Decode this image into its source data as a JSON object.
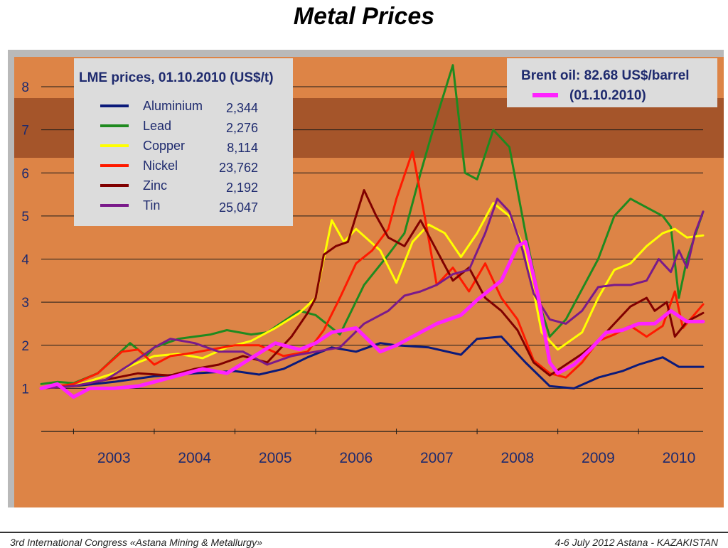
{
  "slide": {
    "title": "Metal Prices"
  },
  "footer": {
    "left": "3rd International Congress «Astana Mining & Metallurgy»",
    "right": "4-6 July 2012     Astana - KAZAKISTAN"
  },
  "colors": {
    "background": "#dd8446",
    "band": "#a5552a",
    "grid": "#1a1a1a",
    "legend_box": "#dcdcdc",
    "axis_text": "#1e2a6e"
  },
  "legend_metals": {
    "title": "LME prices, 01.10.2010 (US$/t)",
    "items": [
      {
        "name": "Aluminium",
        "value": "2,344",
        "color": "#0b1a7a"
      },
      {
        "name": "Lead",
        "value": "2,276",
        "color": "#1f8a1f"
      },
      {
        "name": "Copper",
        "value": "8,114",
        "color": "#ffff00"
      },
      {
        "name": "Nickel",
        "value": "23,762",
        "color": "#ff1a00"
      },
      {
        "name": "Zinc",
        "value": "2,192",
        "color": "#800000"
      },
      {
        "name": "Tin",
        "value": "25,047",
        "color": "#7a1a8a"
      }
    ]
  },
  "legend_oil": {
    "line1": "Brent oil: 82.68 US$/barrel",
    "line2": "(01.10.2010)",
    "color": "#ff22ff"
  },
  "chart_data": {
    "type": "line",
    "title": "Metal Prices",
    "x_tick_labels": [
      "2003",
      "2004",
      "2005",
      "2006",
      "2007",
      "2008",
      "2009",
      "2010"
    ],
    "y_tick_labels": [
      "1",
      "2",
      "3",
      "4",
      "5",
      "6",
      "7",
      "8"
    ],
    "xlim": [
      2002.6,
      2010.8
    ],
    "ylim": [
      0,
      8
    ],
    "grid": true,
    "series": [
      {
        "name": "Aluminium",
        "color": "#0b1a7a",
        "points": [
          [
            2002.6,
            1
          ],
          [
            2003.0,
            1.05
          ],
          [
            2003.5,
            1.15
          ],
          [
            2004.0,
            1.28
          ],
          [
            2004.5,
            1.35
          ],
          [
            2005.0,
            1.4
          ],
          [
            2005.3,
            1.32
          ],
          [
            2005.6,
            1.45
          ],
          [
            2005.9,
            1.72
          ],
          [
            2006.2,
            1.95
          ],
          [
            2006.5,
            1.85
          ],
          [
            2006.8,
            2.05
          ],
          [
            2007.0,
            2.0
          ],
          [
            2007.4,
            1.95
          ],
          [
            2007.8,
            1.78
          ],
          [
            2008.0,
            2.15
          ],
          [
            2008.3,
            2.2
          ],
          [
            2008.6,
            1.6
          ],
          [
            2008.9,
            1.05
          ],
          [
            2009.2,
            1.0
          ],
          [
            2009.5,
            1.25
          ],
          [
            2009.8,
            1.4
          ],
          [
            2010.0,
            1.55
          ],
          [
            2010.3,
            1.72
          ],
          [
            2010.5,
            1.5
          ],
          [
            2010.8,
            1.5
          ]
        ]
      },
      {
        "name": "Lead",
        "color": "#1f8a1f",
        "points": [
          [
            2002.6,
            1.1
          ],
          [
            2002.8,
            1.15
          ],
          [
            2003.0,
            1.12
          ],
          [
            2003.3,
            1.35
          ],
          [
            2003.5,
            1.7
          ],
          [
            2003.7,
            2.05
          ],
          [
            2003.9,
            1.75
          ],
          [
            2004.0,
            1.95
          ],
          [
            2004.3,
            2.15
          ],
          [
            2004.5,
            2.2
          ],
          [
            2004.7,
            2.25
          ],
          [
            2004.9,
            2.35
          ],
          [
            2005.2,
            2.25
          ],
          [
            2005.4,
            2.3
          ],
          [
            2005.6,
            2.55
          ],
          [
            2005.8,
            2.8
          ],
          [
            2006.0,
            2.7
          ],
          [
            2006.3,
            2.25
          ],
          [
            2006.6,
            3.4
          ],
          [
            2006.9,
            4.1
          ],
          [
            2007.1,
            4.6
          ],
          [
            2007.3,
            6.0
          ],
          [
            2007.5,
            7.3
          ],
          [
            2007.7,
            8.5
          ],
          [
            2007.85,
            6.0
          ],
          [
            2008.0,
            5.85
          ],
          [
            2008.2,
            7.0
          ],
          [
            2008.4,
            6.6
          ],
          [
            2008.6,
            4.6
          ],
          [
            2008.8,
            2.8
          ],
          [
            2008.9,
            2.2
          ],
          [
            2009.1,
            2.6
          ],
          [
            2009.3,
            3.3
          ],
          [
            2009.5,
            4.0
          ],
          [
            2009.7,
            5.0
          ],
          [
            2009.9,
            5.4
          ],
          [
            2010.1,
            5.2
          ],
          [
            2010.3,
            5.0
          ],
          [
            2010.4,
            4.75
          ],
          [
            2010.5,
            3.1
          ],
          [
            2010.6,
            4.0
          ],
          [
            2010.8,
            5.1
          ]
        ]
      },
      {
        "name": "Copper",
        "color": "#ffff00",
        "points": [
          [
            2002.6,
            1.0
          ],
          [
            2003.0,
            1.05
          ],
          [
            2003.5,
            1.35
          ],
          [
            2003.8,
            1.6
          ],
          [
            2004.0,
            1.75
          ],
          [
            2004.3,
            1.8
          ],
          [
            2004.6,
            1.7
          ],
          [
            2004.9,
            1.95
          ],
          [
            2005.2,
            2.1
          ],
          [
            2005.5,
            2.4
          ],
          [
            2005.8,
            2.75
          ],
          [
            2006.0,
            3.1
          ],
          [
            2006.2,
            4.9
          ],
          [
            2006.35,
            4.4
          ],
          [
            2006.5,
            4.7
          ],
          [
            2006.8,
            4.2
          ],
          [
            2007.0,
            3.45
          ],
          [
            2007.2,
            4.4
          ],
          [
            2007.4,
            4.8
          ],
          [
            2007.6,
            4.6
          ],
          [
            2007.8,
            4.05
          ],
          [
            2008.0,
            4.6
          ],
          [
            2008.2,
            5.3
          ],
          [
            2008.4,
            5.0
          ],
          [
            2008.6,
            4.2
          ],
          [
            2008.8,
            2.3
          ],
          [
            2009.0,
            1.9
          ],
          [
            2009.3,
            2.3
          ],
          [
            2009.5,
            3.1
          ],
          [
            2009.7,
            3.75
          ],
          [
            2009.9,
            3.9
          ],
          [
            2010.1,
            4.3
          ],
          [
            2010.3,
            4.6
          ],
          [
            2010.45,
            4.7
          ],
          [
            2010.6,
            4.5
          ],
          [
            2010.8,
            4.55
          ]
        ]
      },
      {
        "name": "Nickel",
        "color": "#ff1a00",
        "points": [
          [
            2002.6,
            1.0
          ],
          [
            2003.0,
            1.1
          ],
          [
            2003.3,
            1.35
          ],
          [
            2003.6,
            1.85
          ],
          [
            2003.8,
            1.9
          ],
          [
            2004.0,
            1.55
          ],
          [
            2004.2,
            1.75
          ],
          [
            2004.4,
            1.8
          ],
          [
            2004.7,
            1.9
          ],
          [
            2005.0,
            2.0
          ],
          [
            2005.3,
            2.0
          ],
          [
            2005.6,
            1.75
          ],
          [
            2005.9,
            1.85
          ],
          [
            2006.1,
            2.35
          ],
          [
            2006.3,
            3.1
          ],
          [
            2006.5,
            3.9
          ],
          [
            2006.7,
            4.2
          ],
          [
            2006.9,
            4.7
          ],
          [
            2007.0,
            5.4
          ],
          [
            2007.2,
            6.5
          ],
          [
            2007.35,
            5.0
          ],
          [
            2007.5,
            3.4
          ],
          [
            2007.7,
            3.8
          ],
          [
            2007.9,
            3.25
          ],
          [
            2008.1,
            3.9
          ],
          [
            2008.3,
            3.1
          ],
          [
            2008.5,
            2.6
          ],
          [
            2008.7,
            1.65
          ],
          [
            2008.9,
            1.35
          ],
          [
            2009.1,
            1.25
          ],
          [
            2009.3,
            1.6
          ],
          [
            2009.5,
            2.1
          ],
          [
            2009.7,
            2.25
          ],
          [
            2009.9,
            2.45
          ],
          [
            2010.1,
            2.2
          ],
          [
            2010.3,
            2.45
          ],
          [
            2010.45,
            3.25
          ],
          [
            2010.55,
            2.4
          ],
          [
            2010.8,
            2.95
          ]
        ]
      },
      {
        "name": "Zinc",
        "color": "#800000",
        "points": [
          [
            2002.6,
            1.0
          ],
          [
            2003.0,
            1.05
          ],
          [
            2003.4,
            1.2
          ],
          [
            2003.8,
            1.35
          ],
          [
            2004.2,
            1.3
          ],
          [
            2004.5,
            1.45
          ],
          [
            2004.8,
            1.55
          ],
          [
            2005.1,
            1.75
          ],
          [
            2005.4,
            1.6
          ],
          [
            2005.7,
            2.2
          ],
          [
            2005.9,
            2.75
          ],
          [
            2006.0,
            3.1
          ],
          [
            2006.1,
            4.1
          ],
          [
            2006.25,
            4.3
          ],
          [
            2006.4,
            4.4
          ],
          [
            2006.6,
            5.6
          ],
          [
            2006.75,
            5.0
          ],
          [
            2006.9,
            4.5
          ],
          [
            2007.1,
            4.3
          ],
          [
            2007.3,
            4.9
          ],
          [
            2007.5,
            4.2
          ],
          [
            2007.7,
            3.5
          ],
          [
            2007.9,
            3.8
          ],
          [
            2008.1,
            3.1
          ],
          [
            2008.3,
            2.8
          ],
          [
            2008.5,
            2.35
          ],
          [
            2008.7,
            1.6
          ],
          [
            2008.9,
            1.3
          ],
          [
            2009.1,
            1.55
          ],
          [
            2009.3,
            1.8
          ],
          [
            2009.5,
            2.1
          ],
          [
            2009.7,
            2.5
          ],
          [
            2009.9,
            2.9
          ],
          [
            2010.1,
            3.1
          ],
          [
            2010.2,
            2.8
          ],
          [
            2010.35,
            3.0
          ],
          [
            2010.45,
            2.2
          ],
          [
            2010.6,
            2.55
          ],
          [
            2010.8,
            2.75
          ]
        ]
      },
      {
        "name": "Tin",
        "color": "#7a1a8a",
        "points": [
          [
            2002.6,
            1.0
          ],
          [
            2003.0,
            1.05
          ],
          [
            2003.4,
            1.2
          ],
          [
            2003.7,
            1.55
          ],
          [
            2004.0,
            1.95
          ],
          [
            2004.2,
            2.15
          ],
          [
            2004.5,
            2.05
          ],
          [
            2004.8,
            1.85
          ],
          [
            2005.1,
            1.85
          ],
          [
            2005.4,
            1.55
          ],
          [
            2005.7,
            1.75
          ],
          [
            2006.0,
            1.85
          ],
          [
            2006.3,
            1.95
          ],
          [
            2006.6,
            2.5
          ],
          [
            2006.9,
            2.8
          ],
          [
            2007.1,
            3.15
          ],
          [
            2007.3,
            3.25
          ],
          [
            2007.5,
            3.4
          ],
          [
            2007.7,
            3.65
          ],
          [
            2007.9,
            3.75
          ],
          [
            2008.1,
            4.6
          ],
          [
            2008.25,
            5.4
          ],
          [
            2008.4,
            5.1
          ],
          [
            2008.55,
            4.3
          ],
          [
            2008.7,
            3.2
          ],
          [
            2008.9,
            2.6
          ],
          [
            2009.1,
            2.5
          ],
          [
            2009.3,
            2.8
          ],
          [
            2009.5,
            3.35
          ],
          [
            2009.7,
            3.4
          ],
          [
            2009.9,
            3.4
          ],
          [
            2010.1,
            3.5
          ],
          [
            2010.25,
            4.0
          ],
          [
            2010.4,
            3.7
          ],
          [
            2010.5,
            4.2
          ],
          [
            2010.6,
            3.8
          ],
          [
            2010.7,
            4.6
          ],
          [
            2010.8,
            5.1
          ]
        ]
      },
      {
        "name": "Brent oil",
        "color": "#ff22ff",
        "points": [
          [
            2002.6,
            1.0
          ],
          [
            2002.8,
            1.1
          ],
          [
            2003.0,
            0.8
          ],
          [
            2003.2,
            1.0
          ],
          [
            2003.5,
            1.0
          ],
          [
            2003.8,
            1.05
          ],
          [
            2004.0,
            1.15
          ],
          [
            2004.3,
            1.3
          ],
          [
            2004.6,
            1.45
          ],
          [
            2004.9,
            1.35
          ],
          [
            2005.2,
            1.7
          ],
          [
            2005.5,
            2.05
          ],
          [
            2005.8,
            1.9
          ],
          [
            2006.0,
            2.05
          ],
          [
            2006.2,
            2.3
          ],
          [
            2006.5,
            2.4
          ],
          [
            2006.8,
            1.85
          ],
          [
            2007.0,
            2.0
          ],
          [
            2007.3,
            2.3
          ],
          [
            2007.5,
            2.5
          ],
          [
            2007.8,
            2.7
          ],
          [
            2008.0,
            3.05
          ],
          [
            2008.3,
            3.5
          ],
          [
            2008.5,
            4.3
          ],
          [
            2008.6,
            4.4
          ],
          [
            2008.75,
            3.2
          ],
          [
            2008.9,
            1.6
          ],
          [
            2009.0,
            1.35
          ],
          [
            2009.2,
            1.55
          ],
          [
            2009.4,
            1.9
          ],
          [
            2009.6,
            2.3
          ],
          [
            2009.8,
            2.35
          ],
          [
            2010.0,
            2.5
          ],
          [
            2010.2,
            2.5
          ],
          [
            2010.4,
            2.8
          ],
          [
            2010.6,
            2.55
          ],
          [
            2010.8,
            2.55
          ]
        ]
      }
    ]
  }
}
